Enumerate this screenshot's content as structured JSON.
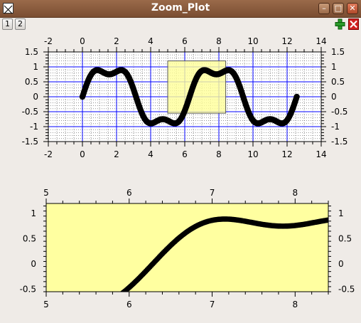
{
  "window": {
    "title": "Zoom_Plot"
  },
  "titlebar_buttons": {
    "minimize": "–",
    "maximize": "□",
    "close": "✕"
  },
  "toolbar": {
    "page_buttons": [
      "1",
      "2"
    ],
    "add_icon": "plus-icon",
    "remove_icon": "delete-icon"
  },
  "colors": {
    "curve": "#000000",
    "zoom_box_fill": "#ffff99",
    "grid_major": "#0000ff",
    "plot_background": "#ffffff",
    "zoom_plot_background": "#ffffa0"
  },
  "chart_data": [
    {
      "type": "scatter",
      "title": "",
      "xlabel": "",
      "ylabel": "",
      "xlim": [
        -2,
        14
      ],
      "ylim": [
        -1.5,
        1.5
      ],
      "x_ticks": [
        "-2",
        "0",
        "2",
        "4",
        "6",
        "8",
        "10",
        "12",
        "14"
      ],
      "y_ticks": [
        "-1.5",
        "-1",
        "-0.5",
        "0",
        "0.5",
        "1",
        "1.5"
      ],
      "grid": true,
      "function": "y = sin(x) + 0.25*sin(3x)",
      "x_range": [
        0,
        12.566
      ],
      "zoom_box": {
        "x": [
          5,
          8.4
        ],
        "y": [
          -0.55,
          1.2
        ]
      }
    },
    {
      "type": "scatter",
      "title": "",
      "xlabel": "",
      "ylabel": "",
      "xlim": [
        5,
        8.4
      ],
      "ylim": [
        -0.55,
        1.2
      ],
      "x_ticks": [
        "5",
        "6",
        "7",
        "8"
      ],
      "y_ticks": [
        "-0.5",
        "0",
        "0.5",
        "1"
      ],
      "grid": false,
      "function": "y = sin(x) + 0.25*sin(3x)",
      "x_range": [
        0,
        12.566
      ]
    }
  ]
}
